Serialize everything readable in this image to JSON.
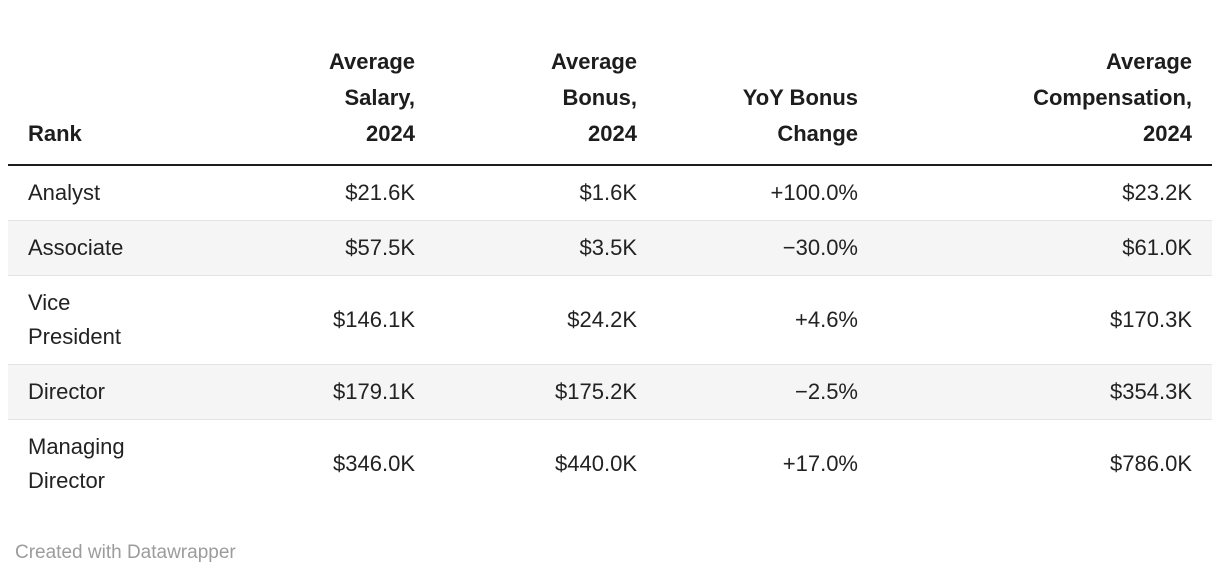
{
  "colors": {
    "background": "#ffffff",
    "header_text": "#1d1d1d",
    "body_text": "#222222",
    "header_rule": "#1d1d1d",
    "row_stripe": "#f5f5f5",
    "row_separator": "#e4e4e4",
    "footer_text": "#9c9c9c"
  },
  "table": {
    "columns": [
      {
        "label": "Rank",
        "align": "left"
      },
      {
        "label": "Average\nSalary,\n2024",
        "align": "right"
      },
      {
        "label": "Average\nBonus,\n2024",
        "align": "right"
      },
      {
        "label": "YoY Bonus\nChange",
        "align": "right"
      },
      {
        "label": "Average\nCompensation,\n2024",
        "align": "right"
      }
    ],
    "rows": [
      [
        "Analyst",
        "$21.6K",
        "$1.6K",
        "+100.0%",
        "$23.2K"
      ],
      [
        "Associate",
        "$57.5K",
        "$3.5K",
        "−30.0%",
        "$61.0K"
      ],
      [
        "Vice\nPresident",
        "$146.1K",
        "$24.2K",
        "+4.6%",
        "$170.3K"
      ],
      [
        "Director",
        "$179.1K",
        "$175.2K",
        "−2.5%",
        "$354.3K"
      ],
      [
        "Managing\nDirector",
        "$346.0K",
        "$440.0K",
        "+17.0%",
        "$786.0K"
      ]
    ]
  },
  "footer": {
    "credit": "Created with Datawrapper"
  },
  "chart_data": {
    "type": "table",
    "title": "",
    "columns": [
      "Rank",
      "Average Salary, 2024",
      "Average Bonus, 2024",
      "YoY Bonus Change",
      "Average Compensation, 2024"
    ],
    "rows": [
      [
        "Analyst",
        "$21.6K",
        "$1.6K",
        "+100.0%",
        "$23.2K"
      ],
      [
        "Associate",
        "$57.5K",
        "$3.5K",
        "−30.0%",
        "$61.0K"
      ],
      [
        "Vice President",
        "$146.1K",
        "$24.2K",
        "+4.6%",
        "$170.3K"
      ],
      [
        "Director",
        "$179.1K",
        "$175.2K",
        "−2.5%",
        "$354.3K"
      ],
      [
        "Managing Director",
        "$346.0K",
        "$440.0K",
        "+17.0%",
        "$786.0K"
      ]
    ],
    "series": [
      {
        "name": "Average Salary, 2024 ($K)",
        "values": [
          21.6,
          57.5,
          146.1,
          179.1,
          346.0
        ]
      },
      {
        "name": "Average Bonus, 2024 ($K)",
        "values": [
          1.6,
          3.5,
          24.2,
          175.2,
          440.0
        ]
      },
      {
        "name": "YoY Bonus Change (%)",
        "values": [
          100.0,
          -30.0,
          4.6,
          -2.5,
          17.0
        ]
      },
      {
        "name": "Average Compensation, 2024 ($K)",
        "values": [
          23.2,
          61.0,
          170.3,
          354.3,
          786.0
        ]
      }
    ],
    "categories": [
      "Analyst",
      "Associate",
      "Vice President",
      "Director",
      "Managing Director"
    ],
    "layout_hints": {
      "zebra_striped_rows": [
        2,
        4
      ],
      "header_alignment": "right except first column",
      "grid": "off"
    }
  }
}
